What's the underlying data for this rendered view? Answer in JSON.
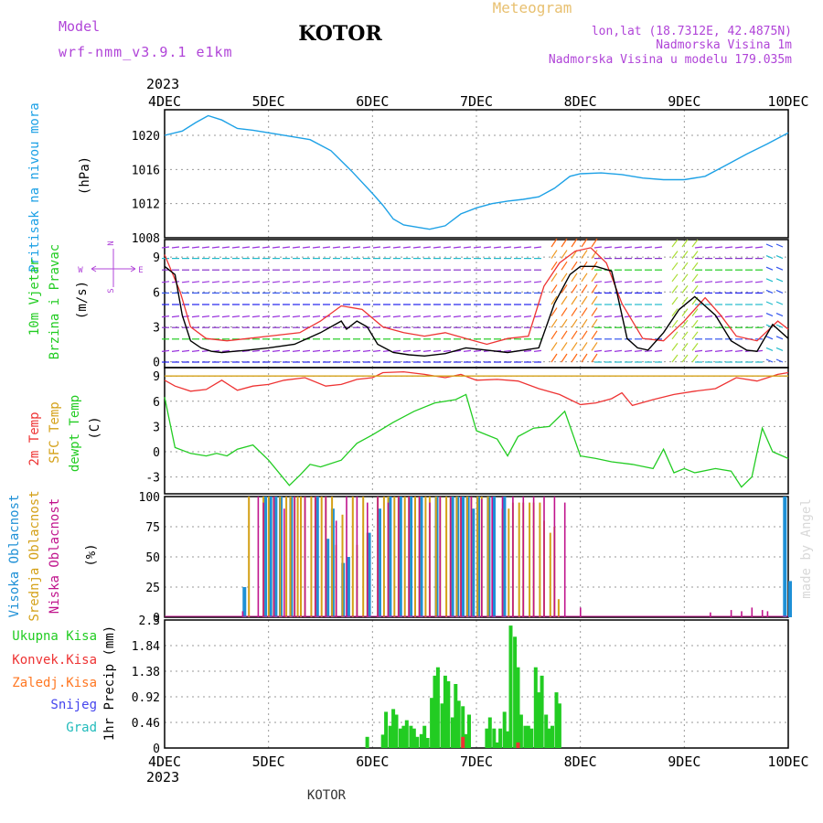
{
  "header": {
    "model_label": "Model",
    "model_name": "wrf-nmm_v3.9.1 e1km",
    "station": "KOTOR",
    "product": "Meteogram",
    "lonlat": "lon,lat (18.7312E, 42.4875N)",
    "elevation": "Nadmorska Visina 1m",
    "model_elevation": "Nadmorska Visina u modelu 179.035m",
    "footer_station": "KOTOR",
    "watermark": "made by Angel"
  },
  "colors": {
    "pressure": "#1da1e6",
    "wind_speed": "#000000",
    "gust": "#ee3333",
    "temp_2m": "#ee3333",
    "sfc_temp": "#d4a017",
    "dewpoint": "#22cc22",
    "cloud_high": "#1e90d6",
    "cloud_mid": "#d4a017",
    "cloud_low": "#c0148c",
    "precip_total": "#22cc22",
    "precip_conv": "#ee3333",
    "precip_frozen": "#ff7722",
    "precip_snow": "#4444ee",
    "precip_hail": "#22bbbb"
  },
  "chart_data": [
    {
      "type": "line",
      "panel": "pressure",
      "ylabel_lines": [
        "Pritisak na nivou mora",
        "(hPa)"
      ],
      "yticks": [
        1008,
        1012,
        1016,
        1020
      ],
      "ylim": [
        1008,
        1023
      ],
      "x_days": [
        "4DEC",
        "5DEC",
        "6DEC",
        "7DEC",
        "8DEC",
        "9DEC",
        "10DEC"
      ],
      "x_year": "2023",
      "x": [
        0,
        0.17,
        0.3,
        0.42,
        0.55,
        0.7,
        0.85,
        1.0,
        1.2,
        1.4,
        1.6,
        1.8,
        2.0,
        2.1,
        2.2,
        2.3,
        2.45,
        2.55,
        2.7,
        2.85,
        3.0,
        3.15,
        3.3,
        3.45,
        3.6,
        3.75,
        3.9,
        4.0,
        4.2,
        4.4,
        4.6,
        4.8,
        5.0,
        5.2,
        5.4,
        5.6,
        5.8,
        6.0
      ],
      "y": [
        1020,
        1020.5,
        1021.5,
        1022.3,
        1021.8,
        1020.8,
        1020.6,
        1020.3,
        1019.9,
        1019.5,
        1018.2,
        1015.8,
        1013.2,
        1011.8,
        1010.2,
        1009.5,
        1009.2,
        1009.0,
        1009.4,
        1010.8,
        1011.5,
        1012.0,
        1012.3,
        1012.5,
        1012.8,
        1013.8,
        1015.2,
        1015.5,
        1015.6,
        1015.4,
        1015.0,
        1014.8,
        1014.8,
        1015.2,
        1016.5,
        1017.8,
        1019.0,
        1020.3
      ]
    },
    {
      "type": "line",
      "panel": "wind",
      "ylabel_lines": [
        "10m Vjetar",
        "Brzina i Pravac",
        "(m/s)"
      ],
      "compass_labels": [
        "N",
        "S",
        "W",
        "E"
      ],
      "yticks": [
        0,
        3,
        6,
        9
      ],
      "ylim": [
        -0.5,
        10.5
      ],
      "series": [
        {
          "name": "speed",
          "x": [
            0,
            0.1,
            0.17,
            0.25,
            0.35,
            0.45,
            0.55,
            0.8,
            1.0,
            1.25,
            1.5,
            1.7,
            1.75,
            1.85,
            1.95,
            2.05,
            2.2,
            2.35,
            2.5,
            2.7,
            2.9,
            3.1,
            3.3,
            3.45,
            3.6,
            3.75,
            3.9,
            4.0,
            4.15,
            4.3,
            4.35,
            4.45,
            4.55,
            4.65,
            4.8,
            4.95,
            5.1,
            5.3,
            5.45,
            5.6,
            5.7,
            5.85,
            6.0
          ],
          "y": [
            8.2,
            7.5,
            4.0,
            1.8,
            1.2,
            0.9,
            0.8,
            1.0,
            1.2,
            1.5,
            2.5,
            3.5,
            2.8,
            3.5,
            3.0,
            1.5,
            0.8,
            0.6,
            0.5,
            0.7,
            1.2,
            1.0,
            0.8,
            1.0,
            1.2,
            5.0,
            7.5,
            8.2,
            8.2,
            7.8,
            6.0,
            2.0,
            1.2,
            1.0,
            2.5,
            4.5,
            5.6,
            4.0,
            1.8,
            1.0,
            0.9,
            3.2,
            2.0
          ]
        },
        {
          "name": "gust",
          "x": [
            0,
            0.15,
            0.25,
            0.4,
            0.6,
            0.8,
            1.0,
            1.3,
            1.5,
            1.7,
            1.9,
            2.1,
            2.3,
            2.5,
            2.7,
            2.9,
            3.1,
            3.3,
            3.5,
            3.65,
            3.8,
            3.95,
            4.1,
            4.25,
            4.4,
            4.6,
            4.8,
            5.0,
            5.2,
            5.35,
            5.5,
            5.7,
            5.9,
            6.0
          ],
          "y": [
            9.2,
            6.0,
            3.0,
            2.0,
            1.8,
            2.0,
            2.2,
            2.5,
            3.5,
            4.8,
            4.5,
            3.0,
            2.5,
            2.2,
            2.5,
            2.0,
            1.5,
            2.0,
            2.2,
            6.5,
            8.5,
            9.5,
            9.8,
            8.5,
            5.0,
            2.0,
            1.8,
            3.5,
            5.5,
            4.0,
            2.2,
            1.8,
            3.5,
            2.8
          ]
        }
      ]
    },
    {
      "type": "line",
      "panel": "temperature",
      "ylabel_lines": [
        "2m Temp",
        "SFC Temp",
        "dewpt Temp",
        "(C)"
      ],
      "yticks": [
        -3,
        0,
        3,
        6,
        9
      ],
      "ylim": [
        -5,
        10
      ],
      "series": [
        {
          "name": "2m Temp",
          "x": [
            0,
            0.1,
            0.25,
            0.4,
            0.55,
            0.7,
            0.85,
            1.0,
            1.15,
            1.35,
            1.55,
            1.7,
            1.85,
            2.0,
            2.1,
            2.3,
            2.5,
            2.7,
            2.85,
            3.0,
            3.2,
            3.4,
            3.6,
            3.8,
            4.0,
            4.15,
            4.3,
            4.4,
            4.5,
            4.7,
            4.9,
            5.1,
            5.3,
            5.5,
            5.7,
            5.9,
            6.0
          ],
          "y": [
            8.5,
            7.8,
            7.2,
            7.4,
            8.5,
            7.3,
            7.8,
            8.0,
            8.5,
            8.8,
            7.8,
            8.0,
            8.6,
            8.8,
            9.4,
            9.5,
            9.2,
            8.8,
            9.2,
            8.5,
            8.6,
            8.4,
            7.5,
            6.8,
            5.6,
            5.8,
            6.3,
            7.0,
            5.5,
            6.2,
            6.8,
            7.2,
            7.5,
            8.8,
            8.4,
            9.2,
            9.4
          ]
        },
        {
          "name": "SFC Temp",
          "x": [
            0,
            6.0
          ],
          "y": [
            9.0,
            9.0
          ]
        },
        {
          "name": "dewpt Temp",
          "x": [
            0,
            0.1,
            0.25,
            0.4,
            0.5,
            0.6,
            0.7,
            0.85,
            1.0,
            1.2,
            1.3,
            1.4,
            1.5,
            1.7,
            1.85,
            2.0,
            2.2,
            2.4,
            2.6,
            2.8,
            2.9,
            3.0,
            3.2,
            3.3,
            3.4,
            3.55,
            3.7,
            3.85,
            4.0,
            4.15,
            4.3,
            4.5,
            4.7,
            4.8,
            4.9,
            5.0,
            5.1,
            5.3,
            5.45,
            5.55,
            5.65,
            5.75,
            5.85,
            6.0
          ],
          "y": [
            6.5,
            0.5,
            -0.2,
            -0.5,
            -0.2,
            -0.5,
            0.3,
            0.8,
            -1.0,
            -4.0,
            -2.8,
            -1.5,
            -1.8,
            -1.0,
            1.0,
            2.0,
            3.5,
            4.8,
            5.8,
            6.2,
            6.8,
            2.5,
            1.5,
            -0.5,
            1.8,
            2.8,
            3.0,
            4.8,
            -0.5,
            -0.8,
            -1.2,
            -1.5,
            -2.0,
            0.3,
            -2.5,
            -2.0,
            -2.5,
            -2.0,
            -2.3,
            -4.2,
            -3.0,
            2.8,
            0.0,
            -0.8
          ]
        }
      ]
    },
    {
      "type": "bar",
      "panel": "clouds",
      "ylabel_lines": [
        "Visoka Oblacnost",
        "Srednja Oblacnost",
        "Niska Oblacnost",
        "(%)"
      ],
      "yticks": [
        0,
        25,
        50,
        75,
        100
      ],
      "ylim": [
        0,
        100
      ],
      "series": [
        {
          "name": "Visoka Oblacnost",
          "x": [
            0.75,
            0.95,
            1.0,
            1.05,
            1.1,
            1.2,
            1.45,
            1.55,
            1.6,
            1.7,
            1.75,
            1.95,
            2.05,
            2.15,
            2.25,
            2.35,
            2.45,
            2.6,
            2.75,
            2.8,
            2.85,
            2.9,
            2.95,
            3.0,
            3.1,
            3.15,
            3.25,
            5.95,
            6.0
          ],
          "y": [
            25,
            100,
            100,
            100,
            100,
            100,
            100,
            65,
            90,
            45,
            50,
            70,
            90,
            100,
            100,
            100,
            100,
            100,
            100,
            100,
            100,
            100,
            90,
            100,
            100,
            100,
            100,
            100,
            30
          ]
        },
        {
          "name": "Srednja Oblacnost",
          "x": [
            0.78,
            0.92,
            0.97,
            1.02,
            1.08,
            1.14,
            1.18,
            1.22,
            1.25,
            1.28,
            1.32,
            1.38,
            1.42,
            1.48,
            1.52,
            1.58,
            1.62,
            1.68,
            1.78,
            1.82,
            1.88,
            1.92,
            2.02,
            2.08,
            2.12,
            2.18,
            2.22,
            2.28,
            2.32,
            2.38,
            2.42,
            2.48,
            2.52,
            2.58,
            2.62,
            2.68,
            2.72,
            2.78,
            2.82,
            2.88,
            2.92,
            2.98,
            3.02,
            3.08,
            3.22,
            3.28,
            3.32,
            3.38,
            3.42,
            3.48,
            3.52,
            3.58,
            3.62,
            3.68,
            3.72,
            3.76
          ],
          "y": [
            100,
            100,
            100,
            100,
            100,
            100,
            100,
            100,
            100,
            100,
            100,
            100,
            100,
            100,
            100,
            100,
            60,
            85,
            100,
            60,
            100,
            70,
            100,
            100,
            100,
            100,
            100,
            100,
            100,
            100,
            100,
            100,
            100,
            100,
            100,
            100,
            100,
            100,
            100,
            100,
            100,
            100,
            100,
            100,
            90,
            90,
            95,
            95,
            95,
            95,
            95,
            95,
            80,
            70,
            75,
            15
          ]
        },
        {
          "name": "Niska Oblacnost",
          "x": [
            0.7,
            0.85,
            0.9,
            1.0,
            1.1,
            1.2,
            1.3,
            1.4,
            1.5,
            1.6,
            1.7,
            1.8,
            1.9,
            2.0,
            2.1,
            2.2,
            2.3,
            2.4,
            2.5,
            2.6,
            2.7,
            2.8,
            2.9,
            3.0,
            3.1,
            3.2,
            3.3,
            3.4,
            3.5,
            3.6,
            3.7,
            3.8,
            3.95,
            5.2,
            5.4,
            5.5,
            5.6,
            5.7,
            5.75
          ],
          "y": [
            5,
            100,
            95,
            100,
            90,
            100,
            100,
            100,
            100,
            80,
            100,
            100,
            95,
            100,
            95,
            100,
            100,
            100,
            95,
            100,
            100,
            100,
            100,
            98,
            100,
            100,
            100,
            100,
            100,
            100,
            100,
            95,
            8,
            4,
            6,
            5,
            8,
            6,
            5
          ]
        }
      ]
    },
    {
      "type": "bar",
      "panel": "precipitation",
      "ylabel_lines": [
        "1hr Precip (mm)"
      ],
      "legend": [
        "Ukupna Kisa",
        "Konvek.Kisa",
        "Zaledj.Kisa",
        "Snijeg",
        "Grad"
      ],
      "yticks": [
        0,
        0.46,
        0.92,
        1.38,
        1.84,
        2.3
      ],
      "ylim": [
        0,
        2.3
      ],
      "x_days": [
        "4DEC",
        "5DEC",
        "6DEC",
        "7DEC",
        "8DEC",
        "9DEC",
        "10DEC"
      ],
      "x_year": "2023",
      "series": [
        {
          "name": "Ukupna Kisa",
          "x": [
            1.95,
            2.1,
            2.13,
            2.17,
            2.2,
            2.23,
            2.27,
            2.3,
            2.33,
            2.37,
            2.4,
            2.43,
            2.47,
            2.5,
            2.53,
            2.57,
            2.6,
            2.63,
            2.67,
            2.7,
            2.73,
            2.77,
            2.8,
            2.83,
            2.87,
            2.9,
            2.93,
            3.1,
            3.13,
            3.17,
            3.2,
            3.23,
            3.27,
            3.3,
            3.33,
            3.37,
            3.4,
            3.43,
            3.47,
            3.5,
            3.53,
            3.57,
            3.6,
            3.63,
            3.67,
            3.7,
            3.73,
            3.77,
            3.8
          ],
          "y": [
            0.2,
            0.24,
            0.65,
            0.4,
            0.7,
            0.6,
            0.35,
            0.4,
            0.5,
            0.4,
            0.35,
            0.2,
            0.25,
            0.4,
            0.18,
            0.9,
            1.3,
            1.45,
            0.8,
            1.3,
            1.2,
            0.55,
            1.15,
            0.85,
            0.75,
            0.25,
            0.6,
            0.35,
            0.55,
            0.35,
            0.1,
            0.35,
            0.65,
            0.3,
            2.2,
            2.0,
            1.45,
            0.6,
            0.4,
            0.4,
            0.35,
            1.45,
            1.0,
            1.3,
            0.6,
            0.35,
            0.4,
            1.0,
            0.8
          ]
        },
        {
          "name": "Konvek.Kisa",
          "x": [
            2.87,
            3.4
          ],
          "y": [
            0.2,
            0.1
          ]
        }
      ]
    }
  ]
}
